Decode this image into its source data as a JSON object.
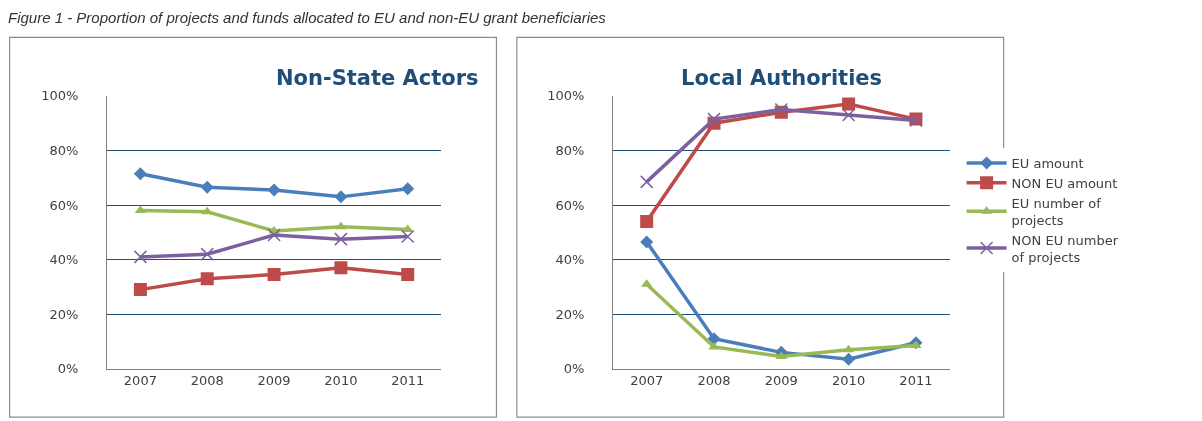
{
  "chart_data": [
    {
      "type": "line",
      "title": "Non-State Actors",
      "annotations": [
        "Figure 1 - Proportion of projects and funds allocated to EU and non-EU grant beneficiaries"
      ],
      "categories": [
        "2007",
        "2008",
        "2009",
        "2010",
        "2011"
      ],
      "ylim": [
        0,
        100
      ],
      "yticks": [
        {
          "value": 0,
          "label": "0%"
        },
        {
          "value": 20,
          "label": "20%"
        },
        {
          "value": 40,
          "label": "40%"
        },
        {
          "value": 60,
          "label": "60%"
        },
        {
          "value": 80,
          "label": "80%"
        },
        {
          "value": 100,
          "label": "100%"
        }
      ],
      "grid": "y",
      "legend": false,
      "series": [
        {
          "color": "#4a7ebb",
          "marker": "diamond",
          "values": [
            71.5,
            66.5,
            65.5,
            63,
            66
          ]
        },
        {
          "color": "#be4b48",
          "marker": "square",
          "values": [
            29,
            33,
            34.5,
            37,
            34.5
          ]
        },
        {
          "color": "#98b954",
          "marker": "triangle",
          "values": [
            58,
            57.5,
            50.5,
            52,
            51
          ]
        },
        {
          "color": "#7d60a0",
          "marker": "cross",
          "values": [
            41,
            42,
            49,
            47.5,
            48.5
          ]
        }
      ]
    },
    {
      "type": "line",
      "title": "Local Authorities",
      "categories": [
        "2007",
        "2008",
        "2009",
        "2010",
        "2011"
      ],
      "ylim": [
        0,
        100
      ],
      "yticks": [
        {
          "value": 0,
          "label": "0%"
        },
        {
          "value": 20,
          "label": "20%"
        },
        {
          "value": 40,
          "label": "40%"
        },
        {
          "value": 60,
          "label": "60%"
        },
        {
          "value": 80,
          "label": "80%"
        },
        {
          "value": 100,
          "label": "100%"
        }
      ],
      "grid": "y",
      "legend": "right",
      "series": [
        {
          "name": "EU amount",
          "color": "#4a7ebb",
          "marker": "diamond",
          "values": [
            46.5,
            11,
            6,
            3.5,
            9.5
          ]
        },
        {
          "name": "NON EU amount",
          "color": "#be4b48",
          "marker": "square",
          "values": [
            54,
            90,
            94,
            97,
            91.5
          ]
        },
        {
          "name": "EU number of projects",
          "color": "#98b954",
          "marker": "triangle",
          "values": [
            31,
            8,
            4.5,
            7,
            8.5
          ]
        },
        {
          "name": "NON EU number of projects",
          "color": "#7d60a0",
          "marker": "cross",
          "values": [
            68.5,
            91.5,
            95,
            93,
            91
          ]
        }
      ]
    }
  ]
}
